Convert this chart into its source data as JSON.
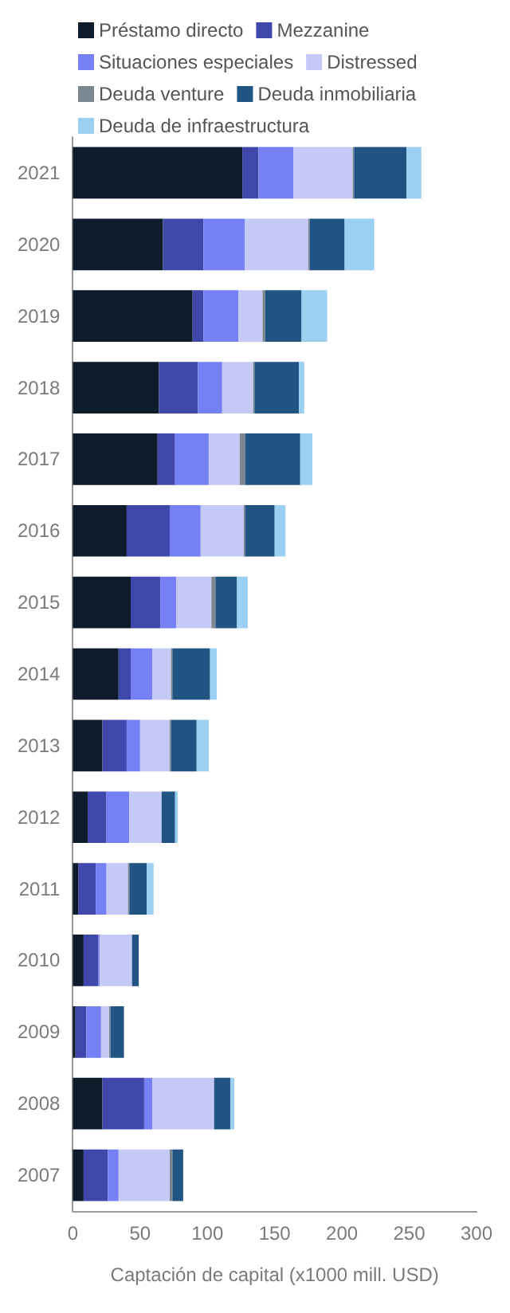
{
  "chart_data": {
    "type": "bar",
    "orientation": "horizontal",
    "stacked": true,
    "xlabel": "Captación de capital (x1000 mill. USD)",
    "categories": [
      "2021",
      "2020",
      "2019",
      "2018",
      "2017",
      "2016",
      "2015",
      "2014",
      "2013",
      "2012",
      "2011",
      "2010",
      "2009",
      "2008",
      "2007"
    ],
    "series": [
      {
        "name": "Préstamo directo",
        "color": "#0d1b2a",
        "values": [
          126,
          67,
          89,
          64,
          63,
          40,
          43,
          34,
          22,
          11,
          4,
          8,
          2,
          22,
          8
        ]
      },
      {
        "name": "Mezzanine",
        "color": "#3f48aa",
        "values": [
          12,
          30,
          8,
          29,
          13,
          32,
          22,
          9,
          18,
          14,
          13,
          11,
          8,
          31,
          18
        ]
      },
      {
        "name": "Situaciones especiales",
        "color": "#7580f5",
        "values": [
          26,
          31,
          26,
          18,
          25,
          23,
          12,
          16,
          10,
          17,
          8,
          1,
          11,
          6,
          8
        ]
      },
      {
        "name": "Distressed",
        "color": "#c5c9f5",
        "values": [
          44,
          47,
          18,
          23,
          23,
          32,
          26,
          14,
          22,
          24,
          16,
          24,
          6,
          46,
          38
        ]
      },
      {
        "name": "Deuda venture",
        "color": "#7a8790",
        "values": [
          1,
          1,
          2,
          1,
          4,
          1,
          3,
          1,
          1,
          0,
          1,
          0,
          1,
          0,
          2
        ]
      },
      {
        "name": "Deuda inmobiliaria",
        "color": "#215483",
        "values": [
          39,
          26,
          27,
          33,
          41,
          22,
          16,
          28,
          19,
          10,
          13,
          5,
          10,
          12,
          8
        ]
      },
      {
        "name": "Deuda de infraestructura",
        "color": "#9bd0f2",
        "values": [
          11,
          22,
          19,
          4,
          9,
          8,
          8,
          5,
          9,
          2,
          5,
          0,
          0,
          3,
          0
        ]
      }
    ],
    "xlim": [
      0,
      300
    ],
    "xticks": [
      0,
      50,
      100,
      150,
      200,
      250,
      300
    ],
    "grid": false,
    "legend": "top"
  }
}
